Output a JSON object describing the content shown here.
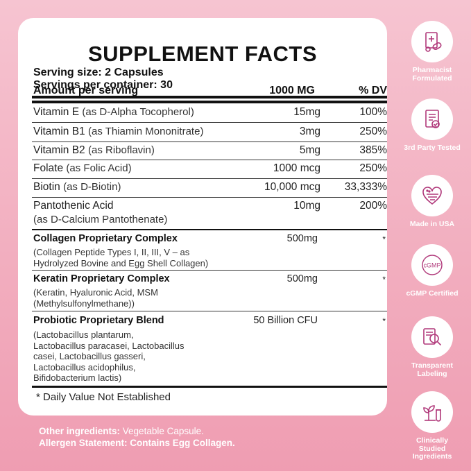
{
  "facts": {
    "title": "SUPPLEMENT FACTS",
    "serving_size": "Serving size: 2 Capsules",
    "servings_per_container": "Servings per container: 30",
    "header": {
      "amount": "Amount per serving",
      "qty": "1000 MG",
      "dv": "% DV"
    },
    "nutrients": [
      {
        "name": "Vitamin E",
        "sub": "(as D-Alpha Tocopherol)",
        "amount": "15mg",
        "dv": "100%"
      },
      {
        "name": "Vitamin B1",
        "sub": "(as Thiamin Mononitrate)",
        "amount": "3mg",
        "dv": "250%"
      },
      {
        "name": "Vitamin B2",
        "sub": "(as Riboflavin)",
        "amount": "5mg",
        "dv": "385%"
      },
      {
        "name": "Folate",
        "sub": "(as Folic Acid)",
        "amount": "1000 mcg",
        "dv": "250%"
      },
      {
        "name": "Biotin",
        "sub": "(as D-Biotin)",
        "amount": "10,000 mcg",
        "dv": "33,333%"
      },
      {
        "name": "Pantothenic Acid",
        "sub": "(as D-Calcium Pantothenate)",
        "amount": "10mg",
        "dv": "200%"
      }
    ],
    "blends": [
      {
        "name": "Collagen Proprietary Complex",
        "amount": "500mg",
        "dv": "*",
        "desc": [
          "(Collagen Peptide Types I, II, III, V – as",
          "Hydrolyzed Bovine and Egg Shell Collagen)"
        ]
      },
      {
        "name": "Keratin Proprietary Complex",
        "amount": "500mg",
        "dv": "*",
        "desc": [
          "(Keratin, Hyaluronic Acid, MSM",
          "(Methylsulfonylmethane))"
        ]
      },
      {
        "name": "Probiotic Proprietary Blend",
        "amount": "50 Billion CFU",
        "dv": "*",
        "desc": [
          "(Lactobacillus plantarum,",
          "Lactobacillus paracasei, Lactobacillus",
          "casei, Lactobacillus gasseri,",
          "Lactobacillus acidophilus,",
          "Bifidobacterium lactis)"
        ]
      }
    ],
    "footnote": "*  Daily Value Not Established"
  },
  "other": {
    "ingredients_label": "Other ingredients:",
    "ingredients_value": "Vegetable Capsule.",
    "allergen_label": "Allergen Statement:",
    "allergen_value": "Contains Egg Collagen."
  },
  "badges": [
    {
      "icon": "pharmacist-icon",
      "label": "Pharmacist Formulated"
    },
    {
      "icon": "test-report-icon",
      "label": "3rd Party Tested"
    },
    {
      "icon": "usa-flag-heart-icon",
      "label": "Made in USA"
    },
    {
      "icon": "cgmp-icon",
      "label": "cGMP Certified",
      "icon_text": "cGMP"
    },
    {
      "icon": "magnifier-document-icon",
      "label": "Transparent Labeling"
    },
    {
      "icon": "plant-flask-icon",
      "label": "Clinically Studied Ingredients"
    }
  ],
  "colors": {
    "background": "#f2aebf",
    "accent": "#b0387a",
    "text": "#1f1f1f"
  }
}
